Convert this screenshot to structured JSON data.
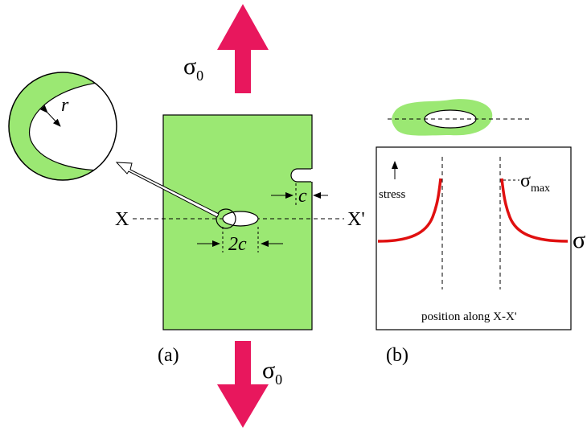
{
  "panel_a": {
    "label": "(a)",
    "top_stress": {
      "symbol": "σ",
      "subscript": "0"
    },
    "bottom_stress": {
      "symbol": "σ",
      "subscript": "0"
    },
    "radius_label": "r",
    "axis_start": "X",
    "axis_end": "X'",
    "edge_crack_label": "c",
    "internal_crack_label": "2c"
  },
  "panel_b": {
    "label": "(b)",
    "y_label": "stress",
    "max_stress": {
      "symbol": "σ",
      "subscript": "max"
    },
    "far_stress": "σ",
    "x_label": "position along X-X'"
  }
}
